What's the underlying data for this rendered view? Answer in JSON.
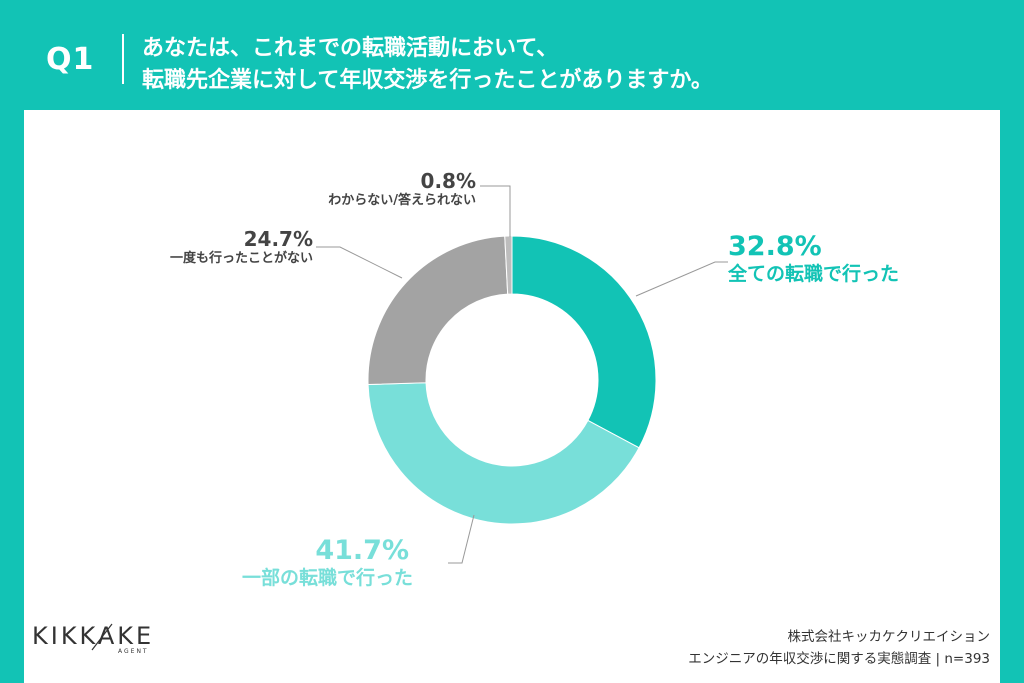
{
  "header": {
    "qnum": "Q1",
    "question_line1": "あなたは、これまでの転職活動において、",
    "question_line2": "転職先企業に対して年収交渉を行ったことがありますか。"
  },
  "chart_data": {
    "type": "pie",
    "variant": "donut",
    "slices": [
      {
        "label": "全ての転職で行った",
        "value": 32.8,
        "value_label": "32.8%",
        "color": "#12c3b5"
      },
      {
        "label": "一部の転職で行った",
        "value": 41.7,
        "value_label": "41.7%",
        "color": "#78dfd9"
      },
      {
        "label": "一度も行ったことがない",
        "value": 24.7,
        "value_label": "24.7%",
        "color": "#a3a3a3"
      },
      {
        "label": "わからない/答えられない",
        "value": 0.8,
        "value_label": "0.8%",
        "color": "#bdbdbd"
      }
    ]
  },
  "footer": {
    "company": "株式会社キッカケクリエイション",
    "survey": "エンジニアの年収交渉に関する実態調査 | n=393"
  },
  "logo": {
    "name": "KIKKAKE",
    "sub": "AGENT"
  }
}
